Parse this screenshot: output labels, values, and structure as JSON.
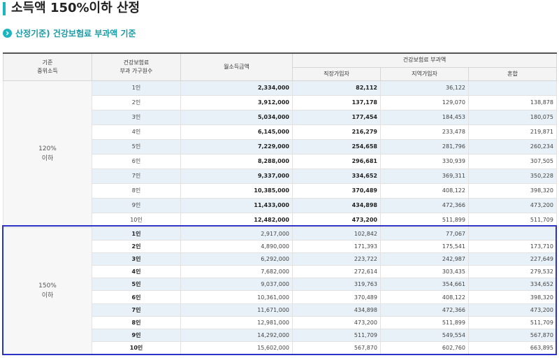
{
  "page": {
    "title": "소득액 150%이하 산정",
    "subtitle": "산정기준) 건강보험료 부과액 기준"
  },
  "table": {
    "headers": {
      "col1": "기준\n중위소득",
      "col2": "건강보험료\n부과 가구원수",
      "col3": "월소득금액",
      "group": "건강보험료 부과액",
      "sub1": "직장가입자",
      "sub2": "지역가입자",
      "sub3": "혼합"
    },
    "groups": [
      {
        "label": "120%\n이하",
        "rows": [
          {
            "household": "1인",
            "income": "2,334,000",
            "employee": "82,112",
            "regional": "36,122",
            "mixed": ""
          },
          {
            "household": "2인",
            "income": "3,912,000",
            "employee": "137,178",
            "regional": "129,070",
            "mixed": "138,878"
          },
          {
            "household": "3인",
            "income": "5,034,000",
            "employee": "177,454",
            "regional": "184,453",
            "mixed": "180,075"
          },
          {
            "household": "4인",
            "income": "6,145,000",
            "employee": "216,279",
            "regional": "233,478",
            "mixed": "219,871"
          },
          {
            "household": "5인",
            "income": "7,229,000",
            "employee": "254,658",
            "regional": "281,796",
            "mixed": "260,234"
          },
          {
            "household": "6인",
            "income": "8,288,000",
            "employee": "296,681",
            "regional": "330,939",
            "mixed": "307,505"
          },
          {
            "household": "7인",
            "income": "9,337,000",
            "employee": "334,652",
            "regional": "369,311",
            "mixed": "350,228"
          },
          {
            "household": "8인",
            "income": "10,385,000",
            "employee": "370,489",
            "regional": "408,122",
            "mixed": "398,320"
          },
          {
            "household": "9인",
            "income": "11,433,000",
            "employee": "434,898",
            "regional": "472,366",
            "mixed": "473,200"
          },
          {
            "household": "10인",
            "income": "12,482,000",
            "employee": "473,200",
            "regional": "511,899",
            "mixed": "511,709"
          }
        ]
      },
      {
        "label": "150%\n이하",
        "rows": [
          {
            "household": "1인",
            "income": "2,917,000",
            "employee": "102,842",
            "regional": "77,067",
            "mixed": ""
          },
          {
            "household": "2인",
            "income": "4,890,000",
            "employee": "171,393",
            "regional": "175,541",
            "mixed": "173,710"
          },
          {
            "household": "3인",
            "income": "6,292,000",
            "employee": "223,722",
            "regional": "242,987",
            "mixed": "227,649"
          },
          {
            "household": "4인",
            "income": "7,682,000",
            "employee": "272,614",
            "regional": "303,435",
            "mixed": "279,532"
          },
          {
            "household": "5인",
            "income": "9,037,000",
            "employee": "319,763",
            "regional": "354,661",
            "mixed": "334,652"
          },
          {
            "household": "6인",
            "income": "10,361,000",
            "employee": "370,489",
            "regional": "408,122",
            "mixed": "398,320"
          },
          {
            "household": "7인",
            "income": "11,671,000",
            "employee": "434,898",
            "regional": "472,366",
            "mixed": "473,200"
          },
          {
            "household": "8인",
            "income": "12,981,000",
            "employee": "473,200",
            "regional": "511,899",
            "mixed": "511,709"
          },
          {
            "household": "9인",
            "income": "14,292,000",
            "employee": "511,709",
            "regional": "549,554",
            "mixed": "567,870"
          },
          {
            "household": "10인",
            "income": "15,602,000",
            "employee": "567,870",
            "regional": "602,760",
            "mixed": "663,895"
          }
        ]
      }
    ]
  },
  "colors": {
    "accent": "#1cb5c2",
    "row_shade": "#e7f1f7",
    "highlight_border": "#2b33c6"
  }
}
